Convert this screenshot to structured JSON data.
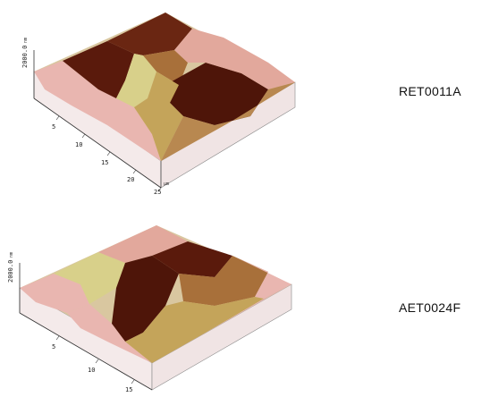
{
  "colors": {
    "background": "#ffffff",
    "low": "#5a1a0c",
    "mid": "#a8703a",
    "high": "#d8d08a",
    "peak": "#e9b6b0",
    "axis": "#333333"
  },
  "panels": [
    {
      "label": "RET0011A",
      "z_tick": "2000.0",
      "z_unit": "nm",
      "xy_unit": "µm",
      "ticks": [
        "5",
        "10",
        "15",
        "20",
        "25"
      ]
    },
    {
      "label": "AET0024F",
      "z_tick": "2000.0",
      "z_unit": "nm",
      "ticks": [
        "5",
        "10",
        "15"
      ]
    }
  ]
}
